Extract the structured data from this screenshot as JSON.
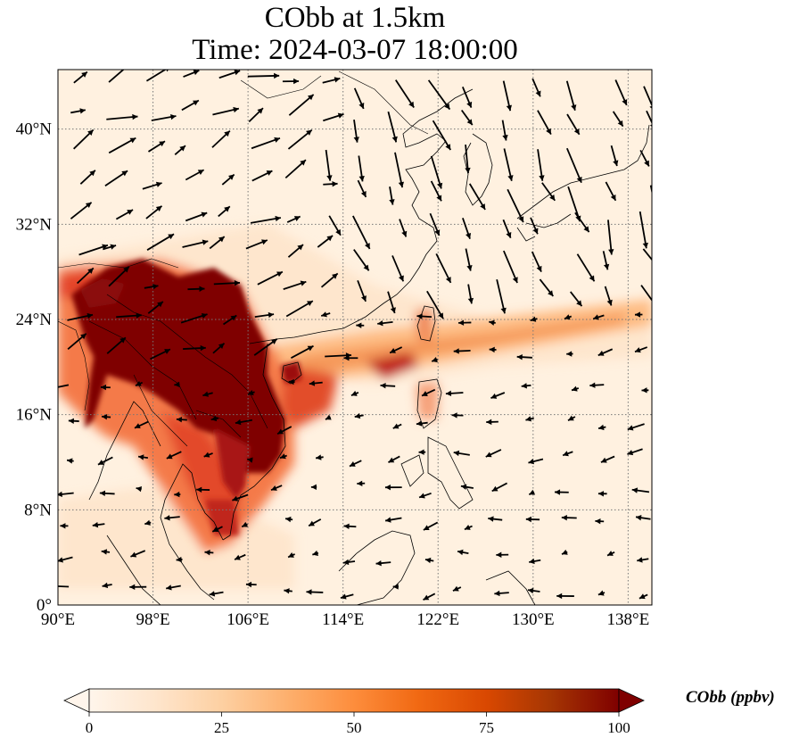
{
  "title": {
    "line1": "CObb at 1.5km",
    "line2": "Time: 2024-03-07 18:00:00"
  },
  "axes": {
    "lon_ticks": [
      "90°E",
      "98°E",
      "106°E",
      "114°E",
      "122°E",
      "130°E",
      "138°E"
    ],
    "lat_ticks": [
      "0°",
      "8°N",
      "16°N",
      "24°N",
      "32°N",
      "40°N"
    ],
    "lon_range": [
      90,
      140
    ],
    "lat_range": [
      0,
      45
    ]
  },
  "colorbar": {
    "label": "CObb (ppbv)",
    "ticks": [
      "0",
      "25",
      "50",
      "75",
      "100"
    ],
    "min": 0,
    "max": 100,
    "colormap": [
      "#fff5eb",
      "#fee6ce",
      "#fdd0a2",
      "#fdae6b",
      "#fd8d3c",
      "#f16913",
      "#d94801",
      "#a63603",
      "#7f2704"
    ],
    "extend": "both"
  },
  "colors": {
    "gridline": "#777777",
    "coastline": "#000000",
    "vector": "#000000",
    "background_field": "#fff1e0"
  }
}
